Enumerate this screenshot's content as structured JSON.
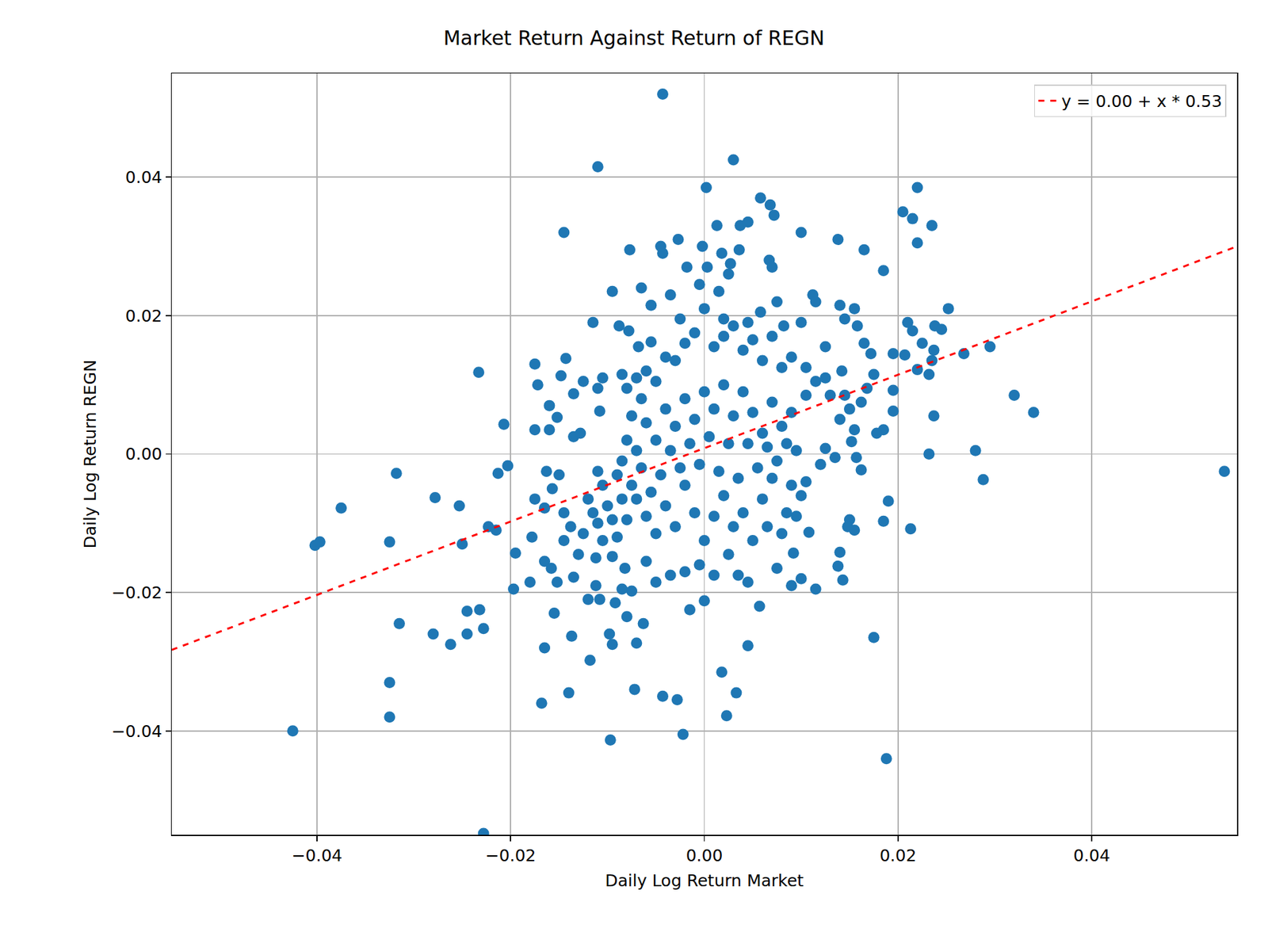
{
  "chart_data": {
    "type": "scatter",
    "title": "Market Return Against Return of REGN",
    "x_label": "Daily Log Return Market",
    "y_label": "Daily Log Return REGN",
    "xlim": [
      -0.055,
      0.055
    ],
    "ylim": [
      -0.055,
      0.055
    ],
    "xticks": [
      {
        "value": -0.04,
        "label": "−0.04"
      },
      {
        "value": -0.02,
        "label": "−0.02"
      },
      {
        "value": 0,
        "label": "0.00"
      },
      {
        "value": 0.02,
        "label": "0.02"
      },
      {
        "value": 0.04,
        "label": "0.04"
      }
    ],
    "yticks": [
      {
        "value": -0.04,
        "label": "−0.04"
      },
      {
        "value": -0.02,
        "label": "−0.02"
      },
      {
        "value": 0,
        "label": "0.00"
      },
      {
        "value": 0.02,
        "label": "0.02"
      },
      {
        "value": 0.04,
        "label": "0.04"
      }
    ],
    "grid": true,
    "legend": "upper right",
    "series": [
      {
        "type": "scatter",
        "marker": "circle",
        "color": "#1f77b4",
        "x": [
          -0.0043,
          -0.011,
          0.003,
          0.0002,
          0.022,
          -0.0145,
          0.0205,
          0.0215,
          0.0235,
          0.022,
          0.0058,
          0.0068,
          0.0072,
          0.0013,
          0.0037,
          0.0045,
          0.01,
          0.0138,
          0.0165,
          0.0185,
          -0.0077,
          -0.0043,
          -0.0045,
          -0.0027,
          -0.0002,
          0.0018,
          0.0036,
          0.0067,
          0.007,
          0.0027,
          -0.0018,
          0.0003,
          0.0537,
          0.034,
          0.032,
          0.0295,
          0.0268,
          0.0252,
          0.0238,
          0.0245,
          0.0237,
          0.0232,
          0.028,
          0.0288,
          0.019,
          0.0213,
          0.0185,
          0.0175,
          0.0188,
          0.0143,
          0.0138,
          0.014,
          0.015,
          0.0148,
          0.0155,
          0.0115,
          0.01,
          0.009,
          0.0108,
          0.0045,
          0.0033,
          0.0023,
          0.0018,
          0.0057,
          -0.0022,
          -0.0028,
          -0.0043,
          -0.0097,
          -0.0072,
          -0.007,
          -0.0095,
          -0.0098,
          -0.0118,
          -0.0137,
          -0.014,
          -0.0168,
          -0.0165,
          -0.0155,
          -0.0015,
          0.0,
          -0.0063,
          -0.008,
          -0.0425,
          -0.0325,
          -0.0325,
          -0.0315,
          -0.028,
          -0.0262,
          -0.0245,
          -0.0232,
          -0.0245,
          -0.0228,
          -0.0228,
          -0.0325,
          -0.0318,
          -0.0375,
          -0.0402,
          -0.0397,
          -0.0278,
          -0.0253,
          -0.025,
          -0.0233,
          -0.0207,
          -0.0203,
          -0.0213,
          -0.0215,
          -0.0223,
          -0.0195,
          -0.0197,
          -0.018,
          -0.0178,
          -0.0175,
          -0.0175,
          -0.016,
          -0.0175,
          -0.0172,
          -0.016,
          -0.0148,
          -0.0143,
          -0.0152,
          -0.0135,
          -0.0135,
          -0.0128,
          -0.0163,
          -0.015,
          -0.0157,
          -0.0165,
          -0.0165,
          -0.0158,
          -0.0152,
          -0.0135,
          -0.012,
          -0.0112,
          -0.0108,
          -0.0092,
          -0.0085,
          -0.0075,
          -0.0115,
          -0.0095,
          -0.0088,
          -0.0078,
          -0.0068,
          -0.0055,
          -0.0065,
          -0.0055,
          -0.0035,
          -0.0025,
          -0.0005,
          0.0015,
          0.0025,
          0.002,
          0.0045,
          0.0058,
          0.0075,
          0.0082,
          0.01,
          0.0112,
          0.0115,
          0.0125,
          0.014,
          0.0145,
          0.0155,
          0.0158,
          0.0165,
          0.0172,
          0.0175,
          0.0168,
          0.0162,
          0.0185,
          0.0178,
          0.0195,
          0.0195,
          0.0195,
          0.0207,
          0.021,
          0.0215,
          0.0225,
          0.022,
          0.0232,
          0.0235,
          0.0237,
          0.0142,
          0.0155,
          0.0152,
          0.0157,
          0.0162,
          0.0125,
          0.012,
          0.0105,
          0.01,
          0.0135,
          0.0095,
          0.0085,
          0.0092,
          0.0075,
          0.0065,
          0.0045,
          0.0035,
          0.0025,
          0.001,
          -0.0005,
          -0.002,
          -0.0035,
          -0.005,
          -0.006,
          -0.0082,
          -0.0095,
          -0.0112,
          -0.0125,
          -0.0138,
          -0.0145,
          -0.012,
          -0.0105,
          -0.011,
          -0.0085,
          -0.0125,
          -0.011,
          -0.0105,
          -0.0108,
          -0.0085,
          -0.008,
          -0.0075,
          -0.007,
          -0.0065,
          -0.006,
          -0.005,
          -0.004,
          -0.003,
          -0.002,
          -0.001,
          0.0,
          0.001,
          0.002,
          0.003,
          0.004,
          0.005,
          0.006,
          0.007,
          0.008,
          0.009,
          0.0105,
          0.0115,
          0.0125,
          0.013,
          0.0145,
          0.015,
          0.014,
          0.0105,
          0.009,
          0.008,
          0.007,
          0.006,
          0.005,
          0.004,
          0.003,
          0.002,
          0.001,
          0.0,
          -0.001,
          -0.002,
          -0.003,
          -0.004,
          -0.005,
          -0.006,
          -0.007,
          -0.008,
          -0.009,
          -0.01,
          -0.011,
          -0.009,
          -0.008,
          -0.007,
          -0.006,
          -0.005,
          -0.004,
          -0.003,
          -0.002,
          -0.001,
          0.0,
          0.001,
          0.002,
          0.003,
          0.004,
          0.005,
          0.006,
          0.007,
          0.008,
          0.009,
          0.0095,
          0.0085,
          0.0075,
          0.0065,
          0.0055,
          0.0045,
          0.0035,
          0.0025,
          0.0015,
          0.0005,
          -0.0005,
          -0.0015,
          -0.0025,
          -0.0035,
          -0.0045,
          -0.0055,
          -0.0065,
          -0.0075,
          -0.0085,
          -0.0095,
          -0.0105,
          -0.0115,
          -0.013,
          -0.0145
        ],
        "values": [
          0.052,
          0.0415,
          0.0425,
          0.0385,
          0.0385,
          0.032,
          0.035,
          0.034,
          0.033,
          0.0305,
          0.037,
          0.036,
          0.0345,
          0.033,
          0.033,
          0.0335,
          0.032,
          0.031,
          0.0295,
          0.0265,
          0.0295,
          0.029,
          0.03,
          0.031,
          0.03,
          0.029,
          0.0295,
          0.028,
          0.027,
          0.0275,
          0.027,
          0.027,
          -0.0025,
          0.006,
          0.0085,
          0.0155,
          0.0145,
          0.021,
          0.0185,
          0.018,
          0.0055,
          0.0,
          0.0005,
          -0.0037,
          -0.0068,
          -0.0108,
          -0.0097,
          -0.0265,
          -0.044,
          -0.0182,
          -0.0162,
          -0.0142,
          -0.0095,
          -0.0105,
          -0.011,
          -0.0195,
          -0.018,
          -0.019,
          -0.0113,
          -0.0277,
          -0.0345,
          -0.0378,
          -0.0315,
          -0.022,
          -0.0405,
          -0.0355,
          -0.035,
          -0.0413,
          -0.034,
          -0.0273,
          -0.0275,
          -0.026,
          -0.0298,
          -0.0263,
          -0.0345,
          -0.036,
          -0.028,
          -0.023,
          -0.0225,
          -0.0212,
          -0.0245,
          -0.0235,
          -0.04,
          -0.038,
          -0.033,
          -0.0245,
          -0.026,
          -0.0275,
          -0.026,
          -0.0225,
          -0.0227,
          -0.0252,
          -0.0548,
          -0.0127,
          -0.0028,
          -0.0078,
          -0.0132,
          -0.0127,
          -0.0063,
          -0.0075,
          -0.013,
          0.0118,
          0.0043,
          -0.0017,
          -0.0028,
          -0.011,
          -0.0105,
          -0.0143,
          -0.0195,
          -0.0185,
          -0.012,
          -0.0065,
          0.0035,
          0.0035,
          0.013,
          0.01,
          0.007,
          0.0113,
          0.0138,
          0.0053,
          0.0087,
          0.0025,
          0.003,
          -0.0025,
          -0.003,
          -0.005,
          -0.0078,
          -0.0155,
          -0.0165,
          -0.0185,
          -0.0178,
          -0.021,
          -0.019,
          -0.021,
          -0.0215,
          -0.0195,
          -0.0198,
          0.019,
          0.0235,
          0.0185,
          0.0178,
          0.0155,
          0.0162,
          0.024,
          0.0215,
          0.023,
          0.0195,
          0.0245,
          0.0235,
          0.026,
          0.0195,
          0.019,
          0.0205,
          0.022,
          0.0185,
          0.019,
          0.023,
          0.022,
          0.0155,
          0.0215,
          0.0195,
          0.021,
          0.0185,
          0.016,
          0.0145,
          0.0115,
          0.0095,
          0.0075,
          0.0035,
          0.003,
          0.0062,
          0.0092,
          0.0145,
          0.0143,
          0.019,
          0.0178,
          0.016,
          0.0122,
          0.0115,
          0.0135,
          0.015,
          0.012,
          0.0035,
          0.0018,
          -0.0005,
          -0.0023,
          0.0008,
          -0.0015,
          -0.004,
          -0.006,
          -0.0005,
          -0.009,
          -0.0085,
          -0.0143,
          -0.0165,
          -0.0105,
          -0.0185,
          -0.0175,
          -0.0145,
          -0.0175,
          -0.016,
          -0.017,
          -0.0175,
          -0.0185,
          -0.0155,
          -0.0165,
          -0.0148,
          -0.015,
          -0.0115,
          -0.0105,
          -0.0085,
          -0.0065,
          -0.0045,
          -0.0025,
          -0.001,
          0.0105,
          0.0095,
          0.011,
          0.0062,
          0.0115,
          0.0095,
          0.0055,
          0.011,
          0.008,
          0.012,
          0.0105,
          0.014,
          0.0135,
          0.016,
          0.0175,
          0.021,
          0.0155,
          0.017,
          0.0185,
          0.015,
          0.0165,
          0.0135,
          0.017,
          0.0125,
          0.014,
          0.0125,
          0.0105,
          0.011,
          0.0085,
          0.0085,
          0.0065,
          0.005,
          0.0085,
          0.006,
          0.004,
          0.0075,
          0.003,
          0.006,
          0.009,
          0.0055,
          0.01,
          0.0065,
          0.009,
          0.005,
          0.008,
          0.004,
          0.0065,
          0.002,
          0.0045,
          0.0005,
          0.002,
          -0.003,
          -0.0075,
          -0.01,
          -0.012,
          -0.0095,
          -0.0065,
          -0.009,
          -0.0115,
          -0.0075,
          -0.0105,
          -0.0045,
          -0.0085,
          -0.0125,
          -0.009,
          -0.006,
          -0.0105,
          -0.0085,
          -0.0125,
          -0.0065,
          -0.0035,
          -0.0115,
          -0.0045,
          0.0005,
          0.0015,
          -0.001,
          0.001,
          -0.002,
          0.0015,
          -0.0035,
          0.0015,
          -0.0025,
          0.0025,
          -0.0015,
          0.0015,
          -0.002,
          0.0005,
          -0.003,
          -0.0055,
          -0.002,
          -0.0045,
          -0.0065,
          -0.0095,
          -0.0125,
          -0.0085,
          -0.0145,
          -0.0125
        ]
      },
      {
        "name": "y = 0.00 + x * 0.53",
        "type": "line",
        "line_style": "dashed",
        "color": "#ff0000",
        "x": [
          -0.055,
          0.055
        ],
        "values": [
          -0.0283,
          0.03
        ]
      }
    ]
  }
}
